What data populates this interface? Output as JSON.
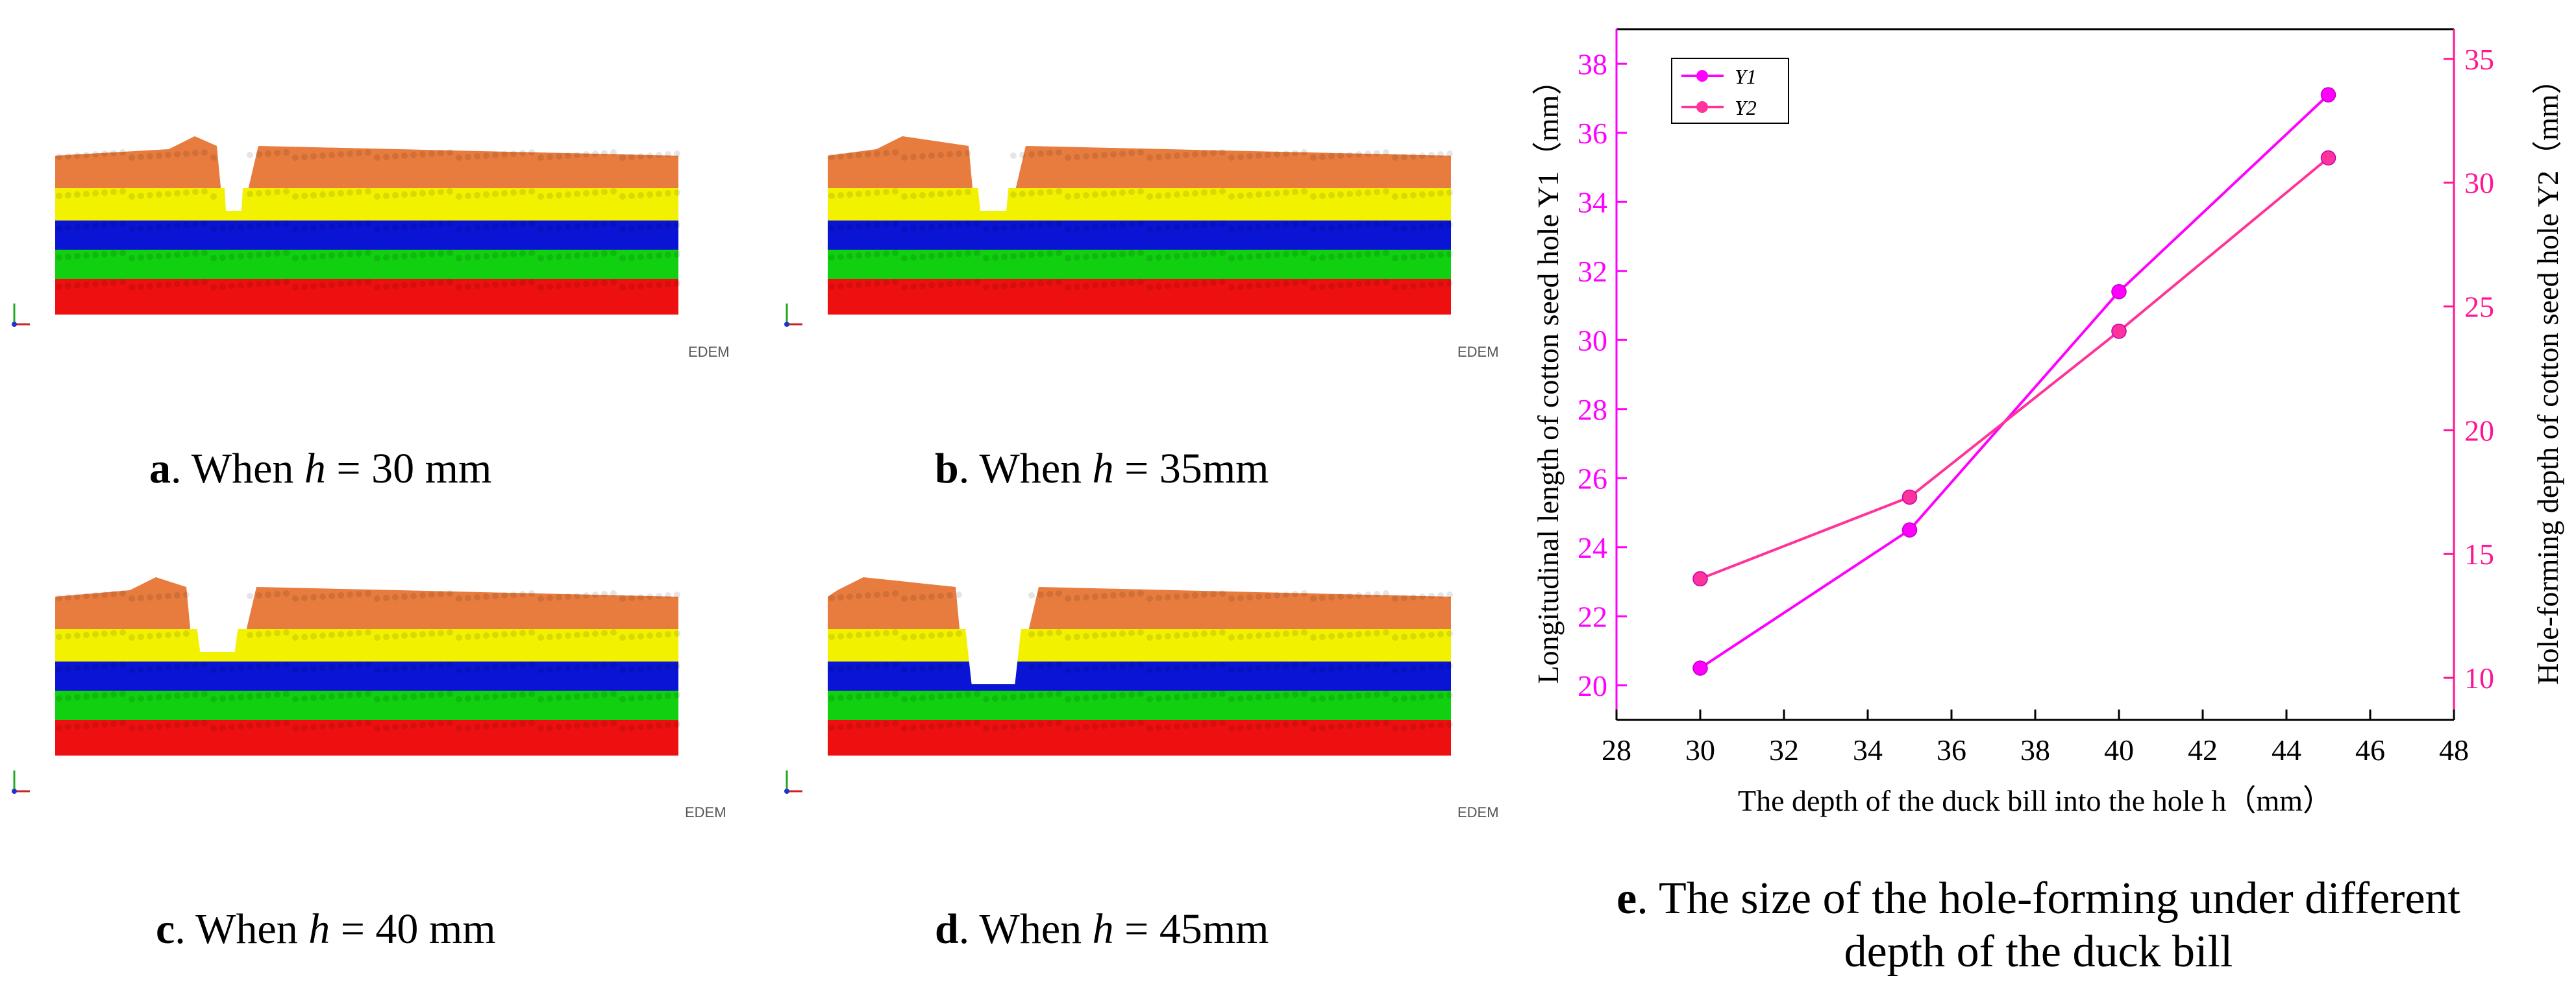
{
  "panels": [
    {
      "letter": "a",
      "prefix": ". When ",
      "var": "h",
      "suffix": " = 30 mm",
      "logo": "EDEM"
    },
    {
      "letter": "b",
      "prefix": ". When ",
      "var": "h",
      "suffix": " = 35mm",
      "logo": "EDEM"
    },
    {
      "letter": "c",
      "prefix": ". When ",
      "var": "h",
      "suffix": " = 40 mm",
      "logo": "EDEM"
    },
    {
      "letter": "d",
      "prefix": ". When ",
      "var": "h",
      "suffix": " = 45mm",
      "logo": "EDEM"
    }
  ],
  "layer_colors": [
    "#e87c3e",
    "#f2f200",
    "#0a14d4",
    "#10d010",
    "#ee1010"
  ],
  "chart_caption": {
    "letter": "e",
    "line1": ". The size of the hole-forming under different",
    "line2": "depth of the duck bill"
  },
  "chart_data": {
    "type": "line",
    "x": [
      30,
      35,
      40,
      45
    ],
    "xlabel": "The depth of the duck bill into the hole h（mm）",
    "ylabel_left": "Longitudinal length of cotton seed hole Y1（mm）",
    "ylabel_right": "Hole-forming depth of cotton seed hole Y2（mm）",
    "xlim": [
      28,
      48
    ],
    "ylim_left": [
      19,
      39
    ],
    "ylim_right": [
      8.3,
      36.2
    ],
    "xticks": [
      28,
      30,
      32,
      34,
      36,
      38,
      40,
      42,
      44,
      46,
      48
    ],
    "yticks_left": [
      20,
      22,
      24,
      26,
      28,
      30,
      32,
      34,
      36,
      38
    ],
    "yticks_right": [
      10,
      15,
      20,
      25,
      30,
      35
    ],
    "legend_position": "top-left",
    "series": [
      {
        "name": "Y1",
        "axis": "left",
        "values": [
          20.5,
          24.5,
          31.4,
          37.1
        ],
        "color": "#ff00ff"
      },
      {
        "name": "Y2",
        "axis": "right",
        "values": [
          14.0,
          17.3,
          24.0,
          31.0
        ],
        "color": "#ff3399"
      }
    ],
    "axis_color_right": "#ff1493",
    "axis_color_left": "#ff00ff"
  }
}
